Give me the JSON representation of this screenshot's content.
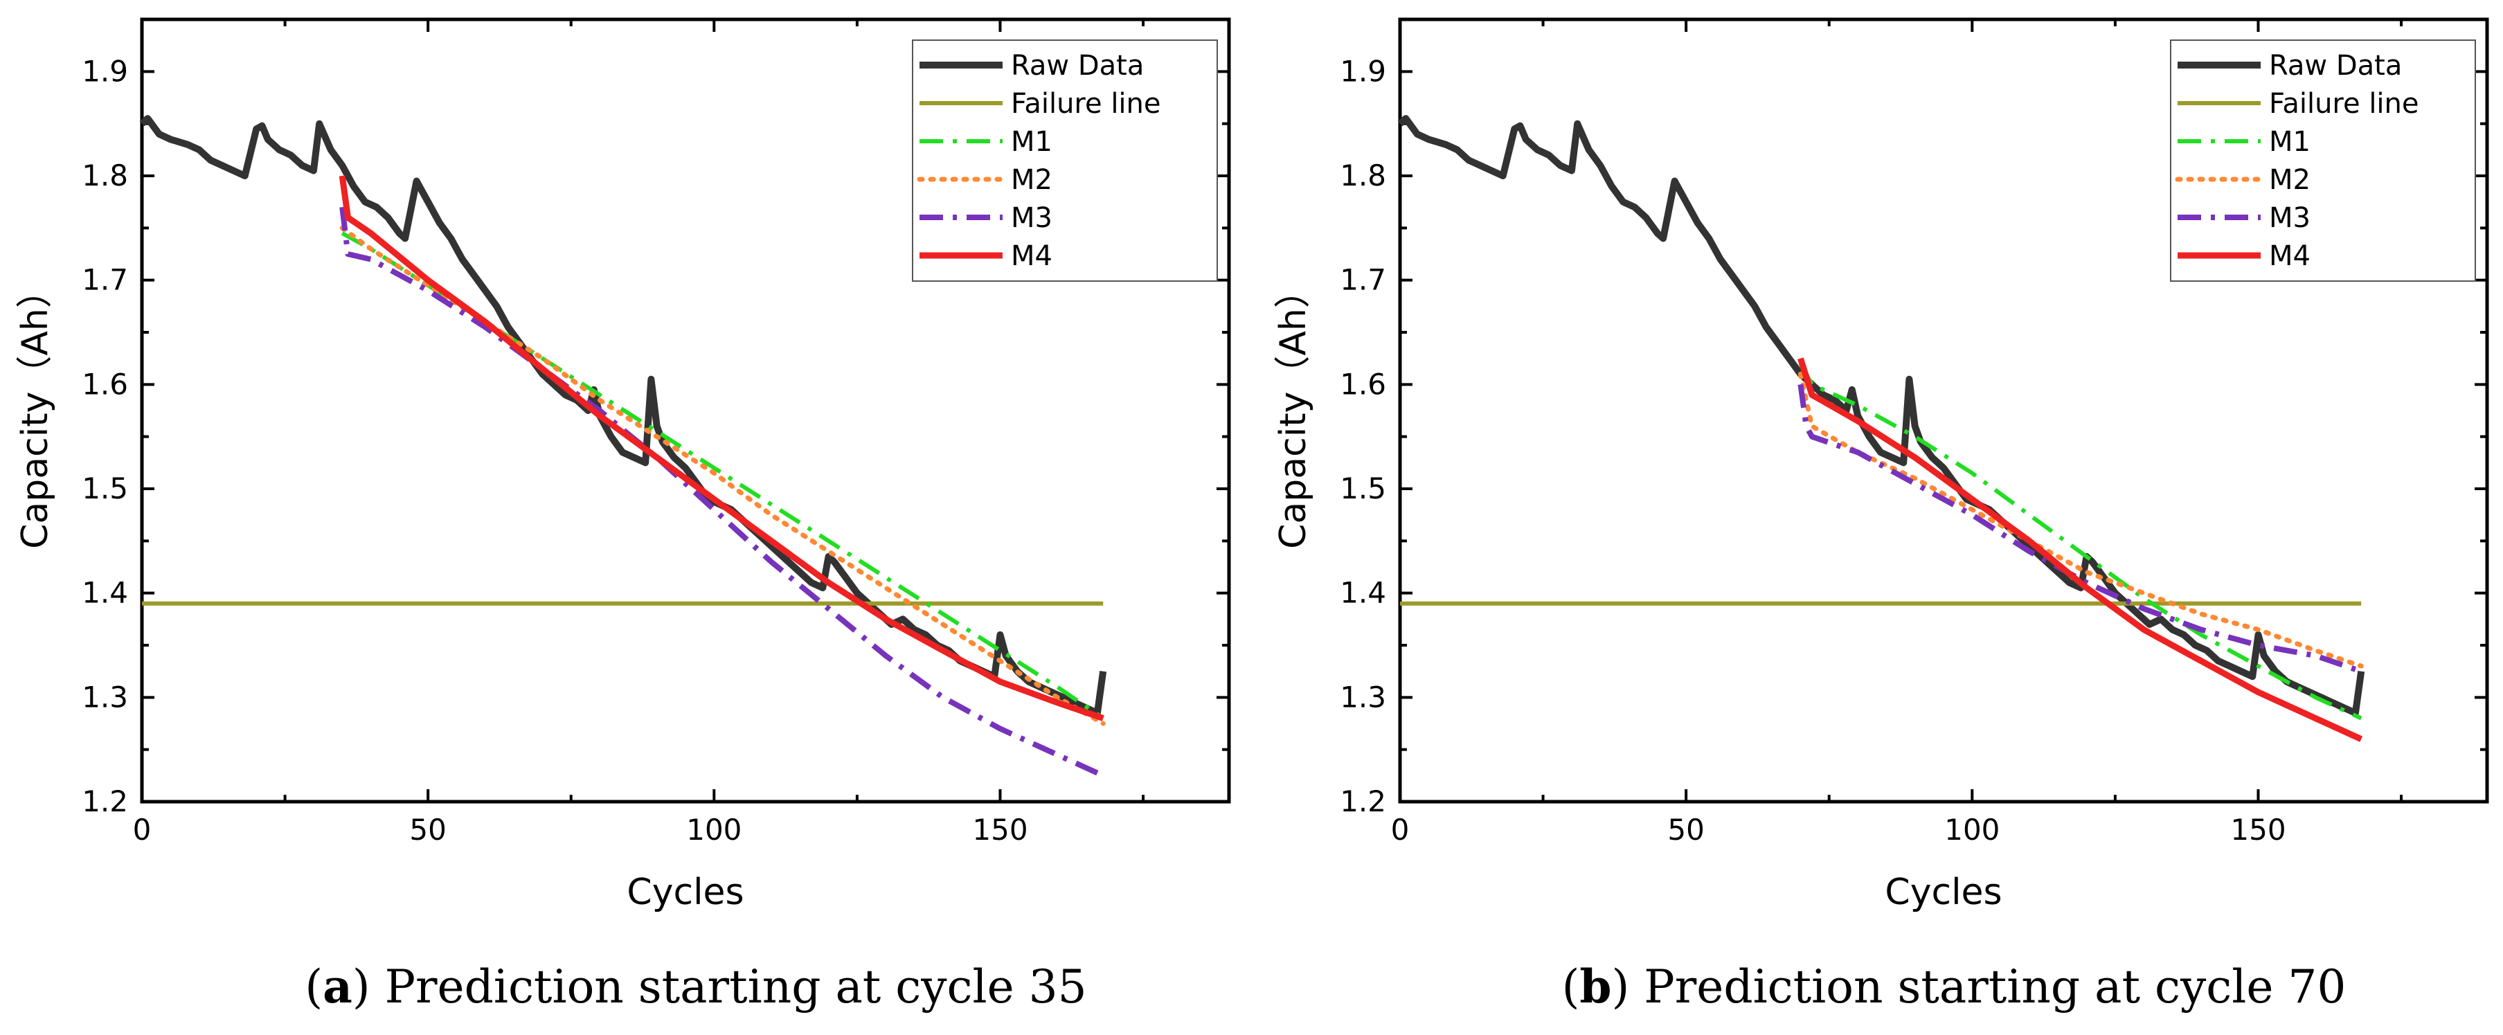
{
  "chart_data": [
    {
      "type": "line",
      "caption_letter": "a",
      "caption_text": "Prediction starting at cycle 35",
      "xlabel": "Cycles",
      "ylabel": "Capacity（Ah）",
      "xlim": [
        0,
        190
      ],
      "ylim": [
        1.2,
        1.95
      ],
      "xticks": [
        0,
        50,
        100,
        150
      ],
      "yticks": [
        1.2,
        1.3,
        1.4,
        1.5,
        1.6,
        1.7,
        1.8,
        1.9
      ],
      "legend_position": "top-right",
      "series": [
        {
          "name": "Raw Data",
          "color": "#333333",
          "style": "solid",
          "x": [
            0,
            1,
            3,
            5,
            8,
            10,
            12,
            14,
            16,
            18,
            20,
            21,
            22,
            24,
            26,
            28,
            30,
            31,
            33,
            35,
            37,
            39,
            41,
            43,
            45,
            46,
            48,
            50,
            52,
            54,
            56,
            58,
            60,
            62,
            64,
            66,
            68,
            70,
            72,
            74,
            76,
            78,
            79,
            80,
            82,
            84,
            86,
            88,
            89,
            90,
            91,
            93,
            95,
            97,
            99,
            101,
            103,
            105,
            107,
            109,
            111,
            113,
            115,
            117,
            119,
            120,
            121,
            123,
            125,
            127,
            129,
            131,
            133,
            135,
            137,
            139,
            141,
            143,
            145,
            147,
            149,
            150,
            151,
            153,
            155,
            157,
            159,
            161,
            163,
            165,
            167,
            168
          ],
          "y": [
            1.85,
            1.855,
            1.84,
            1.835,
            1.83,
            1.825,
            1.815,
            1.81,
            1.805,
            1.8,
            1.845,
            1.848,
            1.835,
            1.825,
            1.82,
            1.81,
            1.805,
            1.85,
            1.825,
            1.81,
            1.79,
            1.775,
            1.77,
            1.76,
            1.745,
            1.74,
            1.795,
            1.775,
            1.755,
            1.74,
            1.72,
            1.705,
            1.69,
            1.675,
            1.655,
            1.64,
            1.625,
            1.61,
            1.6,
            1.59,
            1.585,
            1.575,
            1.595,
            1.57,
            1.55,
            1.535,
            1.53,
            1.525,
            1.605,
            1.56,
            1.545,
            1.53,
            1.52,
            1.505,
            1.49,
            1.485,
            1.48,
            1.47,
            1.46,
            1.45,
            1.44,
            1.43,
            1.42,
            1.41,
            1.405,
            1.435,
            1.43,
            1.415,
            1.4,
            1.39,
            1.38,
            1.37,
            1.375,
            1.365,
            1.36,
            1.35,
            1.345,
            1.335,
            1.33,
            1.325,
            1.32,
            1.36,
            1.34,
            1.325,
            1.315,
            1.31,
            1.305,
            1.3,
            1.295,
            1.29,
            1.285,
            1.325
          ]
        },
        {
          "name": "Failure line",
          "color": "#9c9a28",
          "style": "solid",
          "x": [
            0,
            168
          ],
          "y": [
            1.39,
            1.39
          ]
        },
        {
          "name": "M1",
          "color": "#22dd22",
          "style": "dashdot",
          "x": [
            35,
            40,
            50,
            60,
            70,
            80,
            90,
            100,
            110,
            120,
            130,
            140,
            150,
            160,
            168
          ],
          "y": [
            1.745,
            1.73,
            1.695,
            1.66,
            1.625,
            1.59,
            1.555,
            1.52,
            1.485,
            1.45,
            1.415,
            1.38,
            1.345,
            1.31,
            1.28
          ]
        },
        {
          "name": "M2",
          "color": "#ff8833",
          "style": "dotted",
          "x": [
            35,
            40,
            50,
            60,
            70,
            80,
            90,
            100,
            110,
            120,
            130,
            140,
            150,
            160,
            168
          ],
          "y": [
            1.75,
            1.73,
            1.695,
            1.66,
            1.625,
            1.585,
            1.55,
            1.515,
            1.475,
            1.44,
            1.405,
            1.37,
            1.335,
            1.3,
            1.275
          ]
        },
        {
          "name": "M3",
          "color": "#7733bb",
          "style": "dashdot",
          "x": [
            35,
            36,
            40,
            50,
            60,
            70,
            80,
            90,
            100,
            110,
            120,
            130,
            140,
            150,
            160,
            168
          ],
          "y": [
            1.77,
            1.725,
            1.72,
            1.69,
            1.655,
            1.615,
            1.575,
            1.53,
            1.48,
            1.43,
            1.385,
            1.34,
            1.3,
            1.27,
            1.245,
            1.225
          ]
        },
        {
          "name": "M4",
          "color": "#ee2222",
          "style": "solid",
          "x": [
            35,
            36,
            40,
            50,
            60,
            70,
            80,
            90,
            100,
            110,
            120,
            130,
            140,
            150,
            160,
            168
          ],
          "y": [
            1.8,
            1.76,
            1.745,
            1.7,
            1.66,
            1.615,
            1.57,
            1.53,
            1.49,
            1.45,
            1.41,
            1.375,
            1.345,
            1.315,
            1.295,
            1.28
          ]
        }
      ]
    },
    {
      "type": "line",
      "caption_letter": "b",
      "caption_text": "Prediction starting at cycle 70",
      "xlabel": "Cycles",
      "ylabel": "Capacity（Ah）",
      "xlim": [
        0,
        190
      ],
      "ylim": [
        1.2,
        1.95
      ],
      "xticks": [
        0,
        50,
        100,
        150
      ],
      "yticks": [
        1.2,
        1.3,
        1.4,
        1.5,
        1.6,
        1.7,
        1.8,
        1.9
      ],
      "legend_position": "top-right",
      "series": [
        {
          "name": "Raw Data",
          "color": "#333333",
          "style": "solid",
          "x": [
            0,
            1,
            3,
            5,
            8,
            10,
            12,
            14,
            16,
            18,
            20,
            21,
            22,
            24,
            26,
            28,
            30,
            31,
            33,
            35,
            37,
            39,
            41,
            43,
            45,
            46,
            48,
            50,
            52,
            54,
            56,
            58,
            60,
            62,
            64,
            66,
            68,
            70,
            72,
            74,
            76,
            78,
            79,
            80,
            82,
            84,
            86,
            88,
            89,
            90,
            91,
            93,
            95,
            97,
            99,
            101,
            103,
            105,
            107,
            109,
            111,
            113,
            115,
            117,
            119,
            120,
            121,
            123,
            125,
            127,
            129,
            131,
            133,
            135,
            137,
            139,
            141,
            143,
            145,
            147,
            149,
            150,
            151,
            153,
            155,
            157,
            159,
            161,
            163,
            165,
            167,
            168
          ],
          "y": [
            1.85,
            1.855,
            1.84,
            1.835,
            1.83,
            1.825,
            1.815,
            1.81,
            1.805,
            1.8,
            1.845,
            1.848,
            1.835,
            1.825,
            1.82,
            1.81,
            1.805,
            1.85,
            1.825,
            1.81,
            1.79,
            1.775,
            1.77,
            1.76,
            1.745,
            1.74,
            1.795,
            1.775,
            1.755,
            1.74,
            1.72,
            1.705,
            1.69,
            1.675,
            1.655,
            1.64,
            1.625,
            1.61,
            1.6,
            1.59,
            1.585,
            1.575,
            1.595,
            1.57,
            1.55,
            1.535,
            1.53,
            1.525,
            1.605,
            1.56,
            1.545,
            1.53,
            1.52,
            1.505,
            1.49,
            1.485,
            1.48,
            1.47,
            1.46,
            1.45,
            1.44,
            1.43,
            1.42,
            1.41,
            1.405,
            1.435,
            1.43,
            1.415,
            1.4,
            1.39,
            1.38,
            1.37,
            1.375,
            1.365,
            1.36,
            1.35,
            1.345,
            1.335,
            1.33,
            1.325,
            1.32,
            1.36,
            1.34,
            1.325,
            1.315,
            1.31,
            1.305,
            1.3,
            1.295,
            1.29,
            1.285,
            1.325
          ]
        },
        {
          "name": "Failure line",
          "color": "#9c9a28",
          "style": "solid",
          "x": [
            0,
            168
          ],
          "y": [
            1.39,
            1.39
          ]
        },
        {
          "name": "M1",
          "color": "#22dd22",
          "style": "dashdot",
          "x": [
            70,
            72,
            80,
            90,
            100,
            110,
            120,
            130,
            140,
            150,
            160,
            168
          ],
          "y": [
            1.62,
            1.6,
            1.58,
            1.55,
            1.515,
            1.475,
            1.435,
            1.395,
            1.36,
            1.33,
            1.3,
            1.28
          ]
        },
        {
          "name": "M2",
          "color": "#ff8833",
          "style": "dotted",
          "x": [
            70,
            72,
            80,
            90,
            100,
            110,
            120,
            130,
            140,
            150,
            160,
            168
          ],
          "y": [
            1.61,
            1.56,
            1.535,
            1.51,
            1.48,
            1.45,
            1.42,
            1.4,
            1.38,
            1.365,
            1.345,
            1.33
          ]
        },
        {
          "name": "M3",
          "color": "#7733bb",
          "style": "dashdot",
          "x": [
            70,
            71,
            72,
            80,
            90,
            100,
            110,
            120,
            130,
            140,
            150,
            160,
            168
          ],
          "y": [
            1.6,
            1.56,
            1.55,
            1.535,
            1.505,
            1.475,
            1.44,
            1.41,
            1.385,
            1.365,
            1.35,
            1.34,
            1.325
          ]
        },
        {
          "name": "M4",
          "color": "#ee2222",
          "style": "solid",
          "x": [
            70,
            72,
            80,
            90,
            100,
            110,
            120,
            130,
            140,
            150,
            160,
            168
          ],
          "y": [
            1.625,
            1.59,
            1.565,
            1.53,
            1.49,
            1.45,
            1.405,
            1.365,
            1.335,
            1.305,
            1.28,
            1.26
          ]
        }
      ]
    }
  ]
}
